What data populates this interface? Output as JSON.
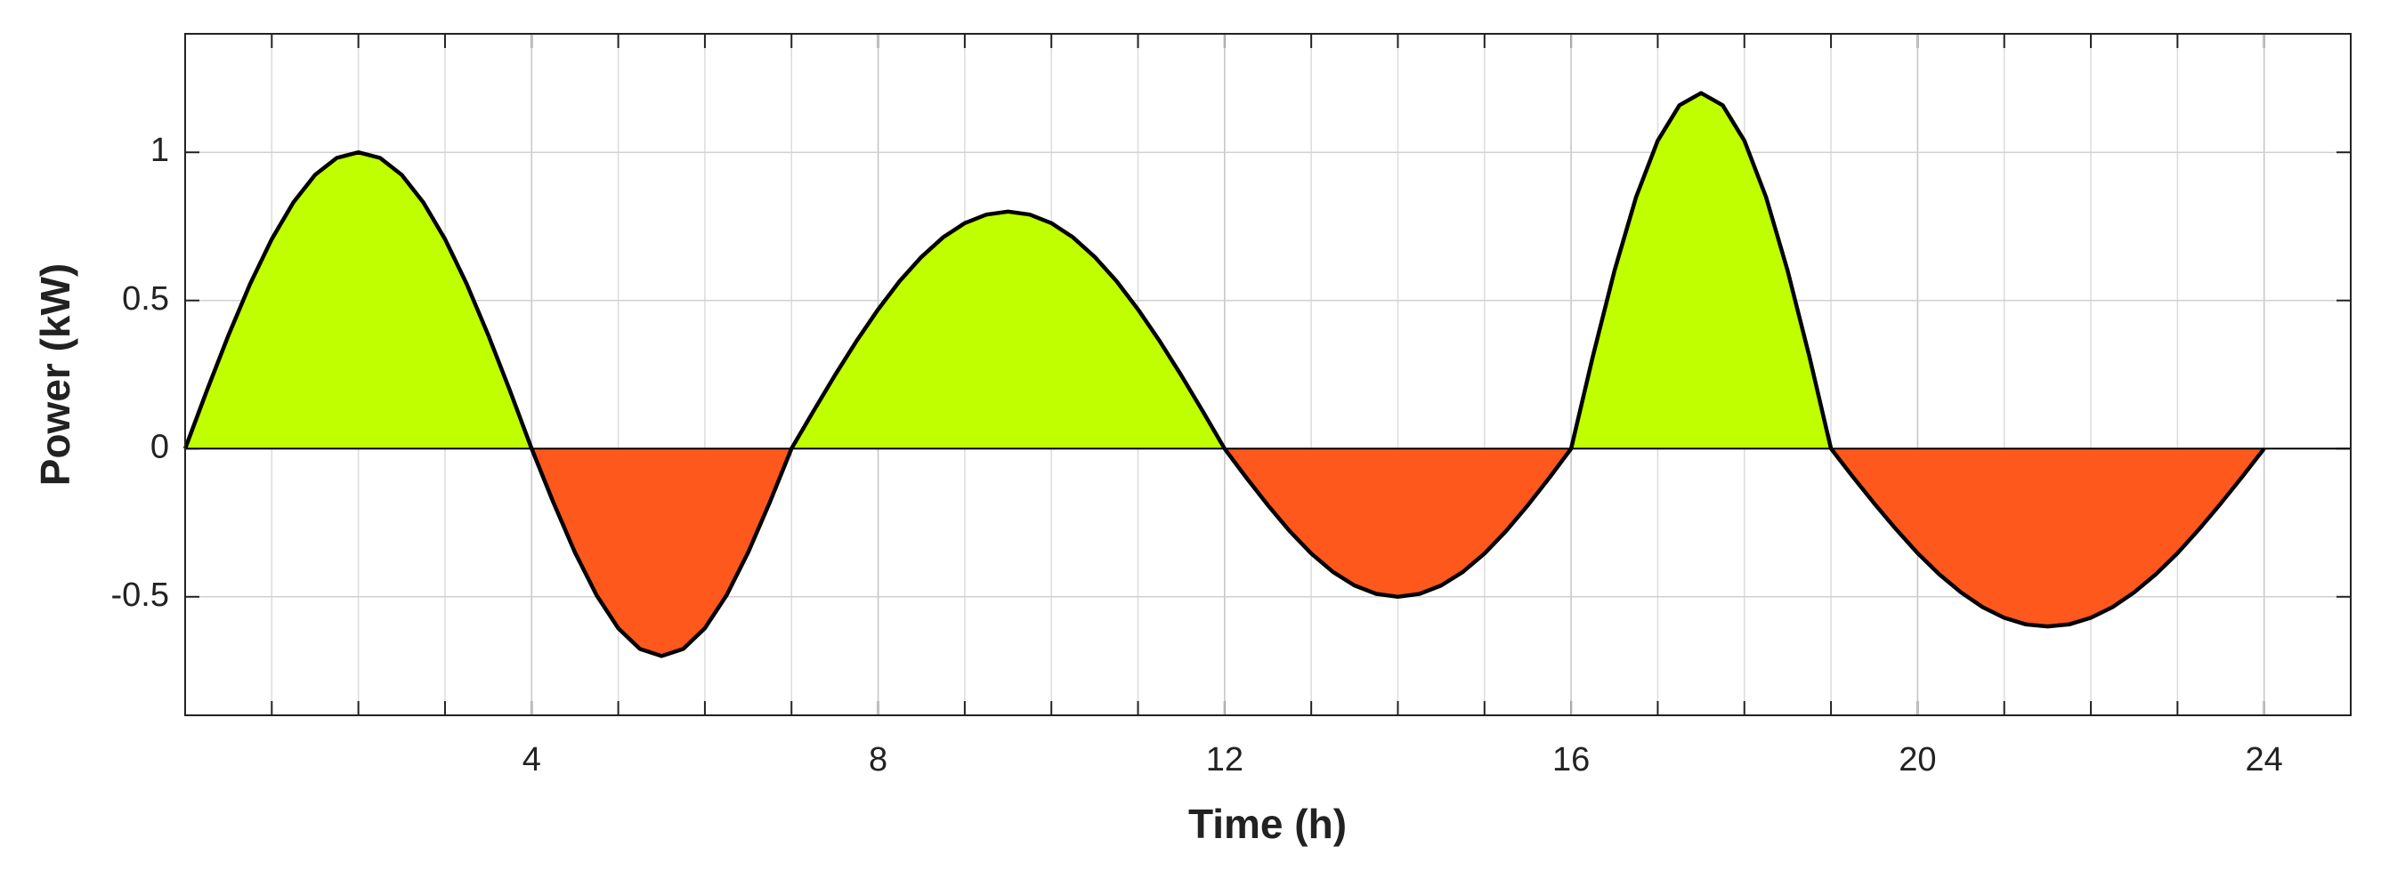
{
  "chart_data": {
    "type": "area",
    "x_label": "Time (h)",
    "y_label": "Power (kW)",
    "x": [
      0,
      0.25,
      0.5,
      0.75,
      1,
      1.25,
      1.5,
      1.75,
      2,
      2.25,
      2.5,
      2.75,
      3,
      3.25,
      3.5,
      3.75,
      4,
      4.25,
      4.5,
      4.75,
      5,
      5.25,
      5.5,
      5.75,
      6,
      6.25,
      6.5,
      6.75,
      7,
      7.25,
      7.5,
      7.75,
      8,
      8.25,
      8.5,
      8.75,
      9,
      9.25,
      9.5,
      9.75,
      10,
      10.25,
      10.5,
      10.75,
      11,
      11.25,
      11.5,
      11.75,
      12,
      12.25,
      12.5,
      12.75,
      13,
      13.25,
      13.5,
      13.75,
      14,
      14.25,
      14.5,
      14.75,
      15,
      15.25,
      15.5,
      15.75,
      16,
      16.25,
      16.5,
      16.75,
      17,
      17.25,
      17.5,
      17.75,
      18,
      18.25,
      18.5,
      18.75,
      19,
      19.25,
      19.5,
      19.75,
      20,
      20.25,
      20.5,
      20.75,
      21,
      21.25,
      21.5,
      21.75,
      22,
      22.25,
      22.5,
      22.75,
      23,
      23.25,
      23.5,
      23.75,
      24
    ],
    "values": [
      0,
      0.195,
      0.383,
      0.556,
      0.707,
      0.831,
      0.924,
      0.981,
      1,
      0.981,
      0.924,
      0.831,
      0.707,
      0.556,
      0.383,
      0.195,
      0,
      -0.181,
      -0.35,
      -0.495,
      -0.606,
      -0.676,
      -0.7,
      -0.676,
      -0.606,
      -0.495,
      -0.35,
      -0.181,
      0,
      0.125,
      0.247,
      0.363,
      0.47,
      0.566,
      0.647,
      0.713,
      0.761,
      0.79,
      0.8,
      0.79,
      0.761,
      0.713,
      0.647,
      0.566,
      0.47,
      0.363,
      0.247,
      0.125,
      0,
      -0.098,
      -0.191,
      -0.278,
      -0.354,
      -0.416,
      -0.462,
      -0.49,
      -0.5,
      -0.49,
      -0.462,
      -0.416,
      -0.354,
      -0.278,
      -0.191,
      -0.098,
      0,
      0.311,
      0.6,
      0.849,
      1.039,
      1.159,
      1.2,
      1.159,
      1.039,
      0.849,
      0.6,
      0.311,
      0,
      -0.094,
      -0.185,
      -0.272,
      -0.353,
      -0.424,
      -0.485,
      -0.535,
      -0.571,
      -0.593,
      -0.6,
      -0.593,
      -0.571,
      -0.535,
      -0.485,
      -0.424,
      -0.353,
      -0.272,
      -0.185,
      -0.094,
      0
    ],
    "positive_color": "#bfff00",
    "negative_color": "#ff581d",
    "line_color": "#000000",
    "xlim": [
      0,
      25
    ],
    "xticks": [
      4,
      8,
      12,
      16,
      20,
      24
    ],
    "x_minor_ticks": [
      1,
      2,
      3,
      4,
      5,
      6,
      7,
      8,
      9,
      10,
      11,
      12,
      13,
      14,
      15,
      16,
      17,
      18,
      19,
      20,
      21,
      22,
      23,
      24
    ],
    "ylim": [
      -0.9,
      1.4
    ],
    "yticks": [
      -0.5,
      0,
      0.5,
      1
    ],
    "grid": true
  }
}
